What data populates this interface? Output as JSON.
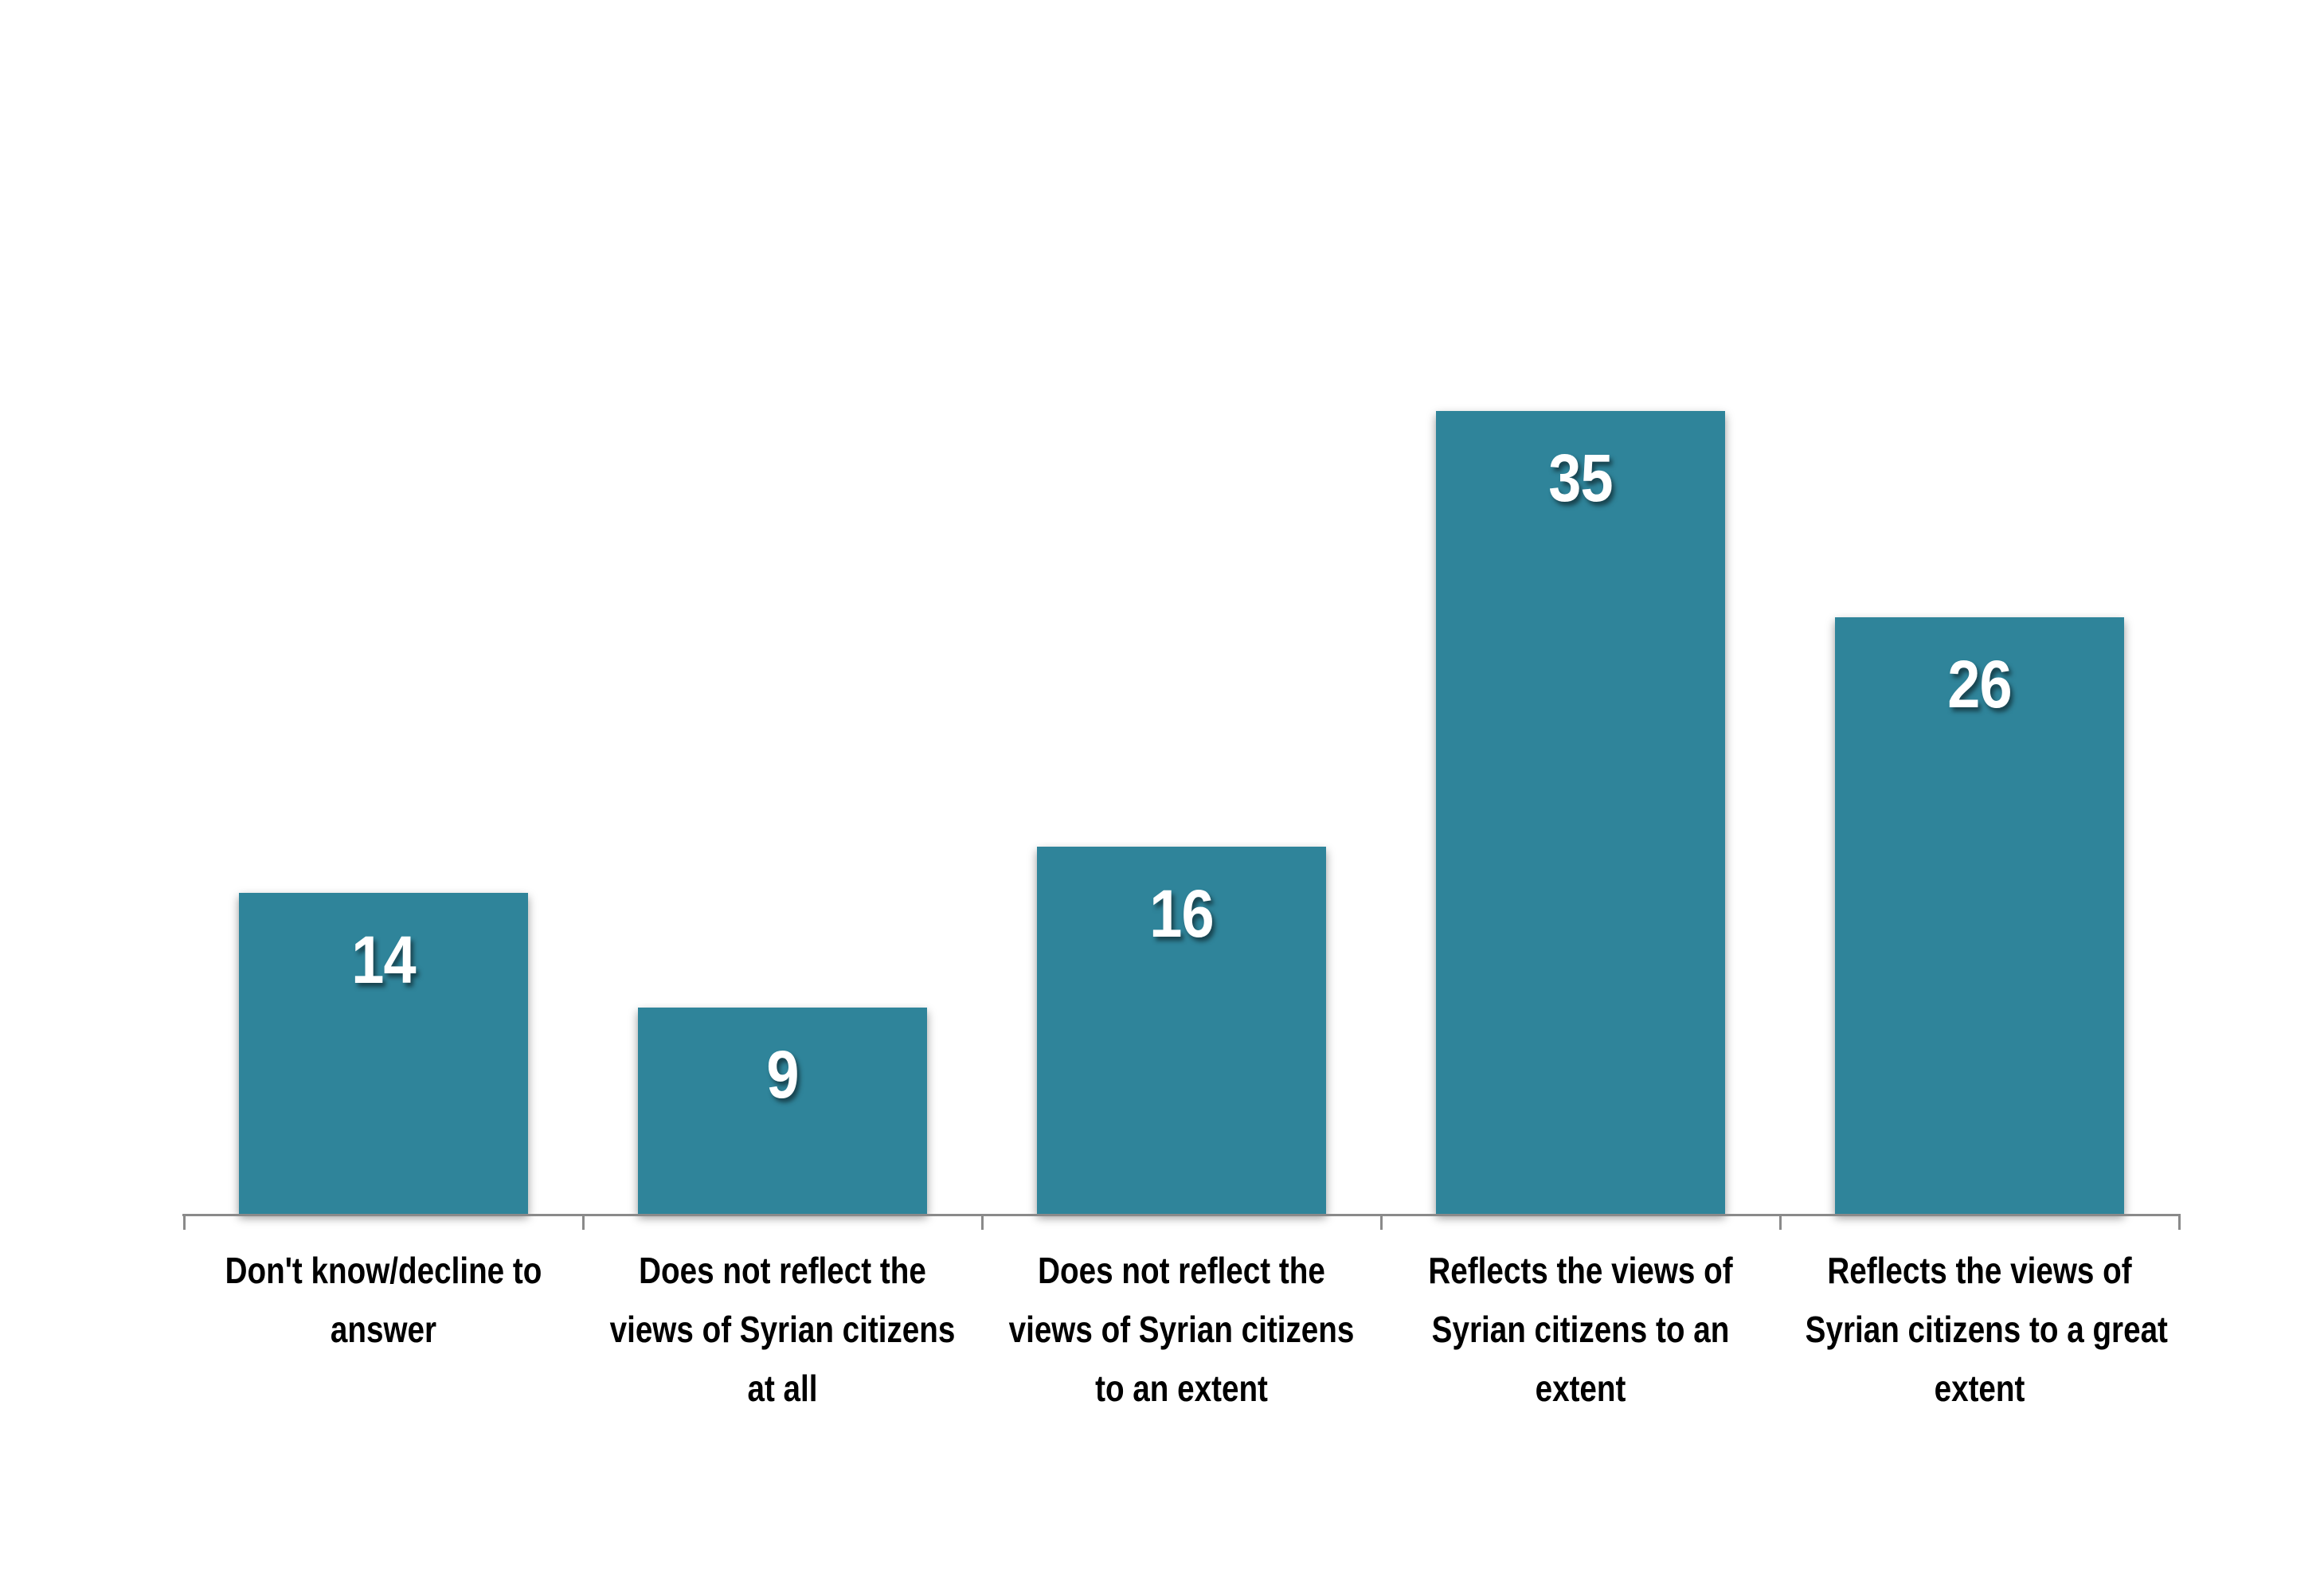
{
  "chart_data": {
    "type": "bar",
    "title": "",
    "xlabel": "",
    "ylabel": "",
    "categories": [
      "Don't know/decline to answer",
      "Does not reflect the views of Syrian citizens at all",
      "Does not reflect the views of Syrian citizens to an extent",
      "Reflects the views of Syrian citizens to an extent",
      "Reflects the views of Syrian citizens to a great extent"
    ],
    "category_lines": [
      [
        "Don't know/decline to",
        "answer"
      ],
      [
        "Does not reflect the",
        "views of Syrian citizens",
        "at all"
      ],
      [
        "Does not reflect the",
        "views of Syrian citizens",
        "to an extent"
      ],
      [
        "Reflects the views of",
        "Syrian citizens to an",
        "extent"
      ],
      [
        "Reflects the views of",
        "Syrian citizens to a great",
        "extent"
      ]
    ],
    "values": [
      14,
      9,
      16,
      35,
      26
    ],
    "value_labels": [
      "14",
      "9",
      "16",
      "35",
      "26"
    ],
    "ylim": [
      0,
      40
    ],
    "grid": false,
    "legend": false,
    "value_label_position": "inside-end",
    "colors": {
      "bar": "#2F849A",
      "axis_line": "#8A8A8A",
      "value_label": "#FFFFFF",
      "category_label": "#000000",
      "background": "#FFFFFF"
    }
  }
}
